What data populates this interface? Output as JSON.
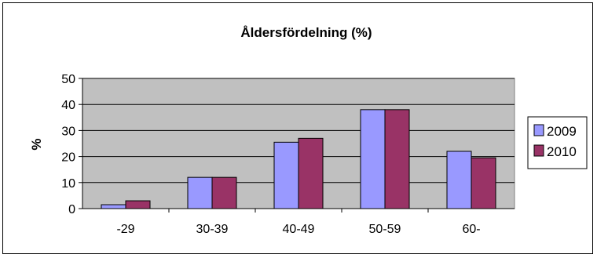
{
  "chart_data": {
    "type": "bar",
    "title": "Åldersfördelning (%)",
    "ylabel": "%",
    "xlabel": "",
    "categories": [
      "-29",
      "30-39",
      "40-49",
      "50-59",
      "60-"
    ],
    "series": [
      {
        "name": "2009",
        "values": [
          1.5,
          12,
          25.5,
          38,
          22
        ],
        "color": "#9999FF"
      },
      {
        "name": "2010",
        "values": [
          3,
          12,
          27,
          38,
          19.5
        ],
        "color": "#993366"
      }
    ],
    "ylim": [
      0,
      50
    ],
    "yticks": [
      "0",
      "10",
      "20",
      "30",
      "40",
      "50"
    ],
    "grid": true,
    "plot_background": "#C0C0C0",
    "legend_position": "right"
  }
}
